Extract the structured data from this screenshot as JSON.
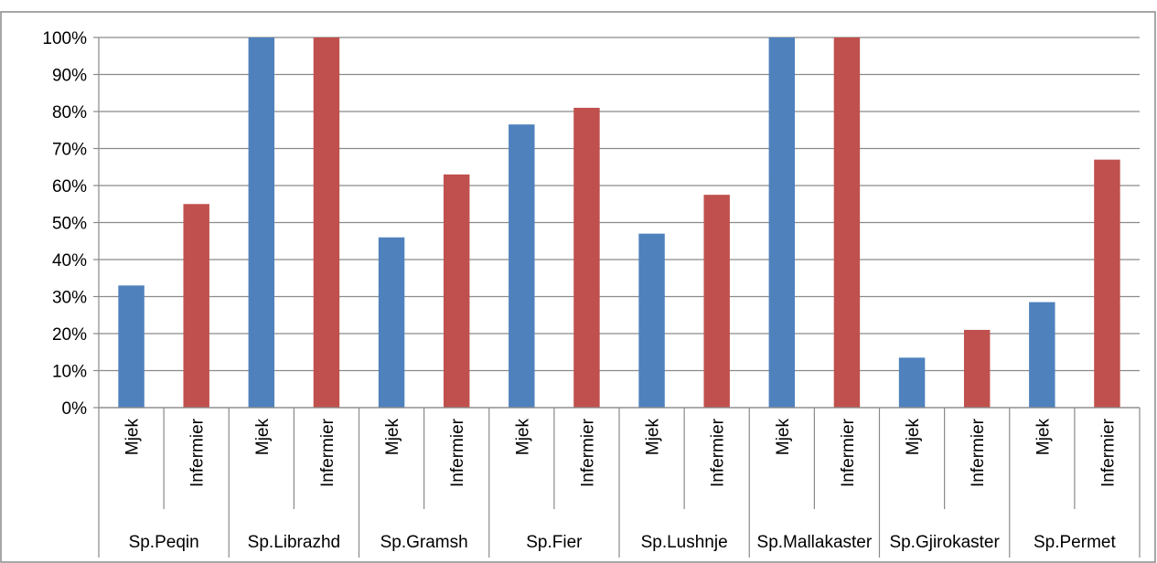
{
  "chart_data": {
    "type": "bar",
    "title": "",
    "xlabel": "",
    "ylabel": "",
    "ylim": [
      0,
      100
    ],
    "y_tick_labels": [
      "0%",
      "10%",
      "20%",
      "30%",
      "40%",
      "50%",
      "60%",
      "70%",
      "80%",
      "90%",
      "100%"
    ],
    "grid": true,
    "legend": "none",
    "colors": {
      "Mjek": "#4f81bd",
      "Infermier": "#c0504d"
    },
    "groups": [
      {
        "name": "Sp.Peqin",
        "bars": [
          {
            "label": "Mjek",
            "value": 33
          },
          {
            "label": "Infermier",
            "value": 55
          }
        ]
      },
      {
        "name": "Sp.Librazhd",
        "bars": [
          {
            "label": "Mjek",
            "value": 100
          },
          {
            "label": "Infermier",
            "value": 100
          }
        ]
      },
      {
        "name": "Sp.Gramsh",
        "bars": [
          {
            "label": "Mjek",
            "value": 46
          },
          {
            "label": "Infermier",
            "value": 63
          }
        ]
      },
      {
        "name": "Sp.Fier",
        "bars": [
          {
            "label": "Mjek",
            "value": 76.5
          },
          {
            "label": "Infermier",
            "value": 81
          }
        ]
      },
      {
        "name": "Sp.Lushnje",
        "bars": [
          {
            "label": "Mjek",
            "value": 47
          },
          {
            "label": "Infermier",
            "value": 57.5
          }
        ]
      },
      {
        "name": "Sp.Mallakaster",
        "bars": [
          {
            "label": "Mjek",
            "value": 100
          },
          {
            "label": "Infermier",
            "value": 100
          }
        ]
      },
      {
        "name": "Sp.Gjirokaster",
        "bars": [
          {
            "label": "Mjek",
            "value": 13.5
          },
          {
            "label": "Infermier",
            "value": 21
          }
        ]
      },
      {
        "name": "Sp.Permet",
        "bars": [
          {
            "label": "Mjek",
            "value": 28.5
          },
          {
            "label": "Infermier",
            "value": 67
          }
        ]
      }
    ]
  }
}
